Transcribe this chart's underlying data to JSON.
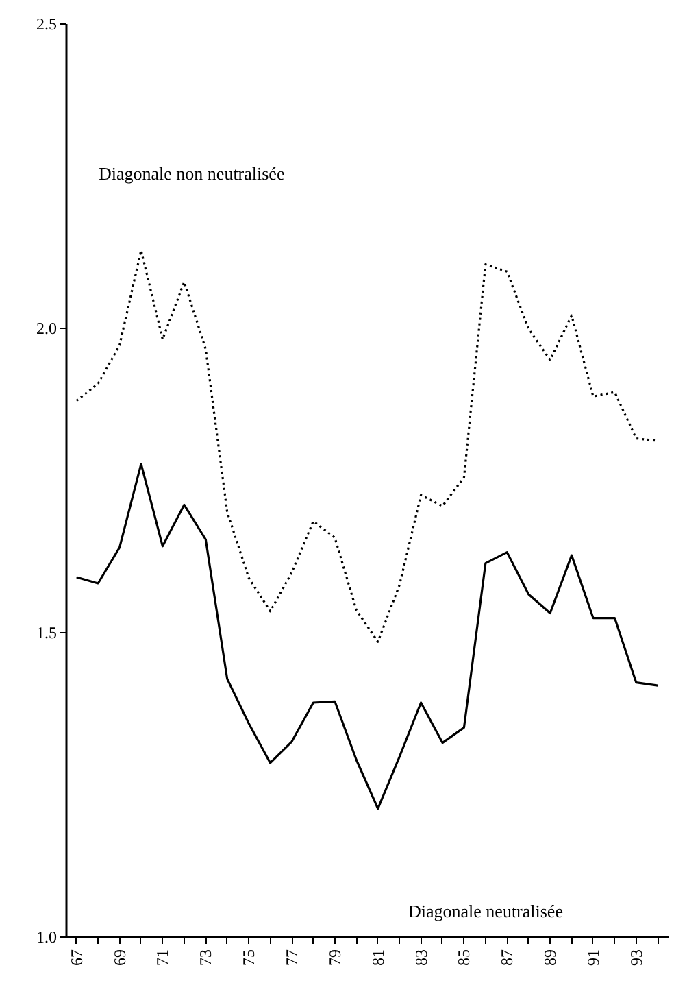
{
  "chart_data": {
    "type": "line",
    "categories": [
      "67",
      null,
      "69",
      null,
      "71",
      null,
      "73",
      null,
      "75",
      null,
      "77",
      null,
      "79",
      null,
      "81",
      null,
      "83",
      null,
      "85",
      null,
      "87",
      null,
      "89",
      null,
      "91",
      null,
      "93",
      null
    ],
    "series": [
      {
        "color": "#000000",
        "line_style": "dotted",
        "values": [
          1.88,
          1.908,
          1.971,
          2.127,
          1.981,
          2.075,
          1.965,
          1.697,
          1.589,
          1.534,
          1.598,
          1.682,
          1.655,
          1.536,
          1.484,
          1.577,
          1.725,
          1.707,
          1.754,
          2.104,
          2.092,
          1.998,
          1.947,
          2.02,
          1.887,
          1.894,
          1.818,
          1.814
        ]
      },
      {
        "color": "#000000",
        "line_style": "solid",
        "values": [
          1.59,
          1.58,
          1.639,
          1.776,
          1.641,
          1.709,
          1.652,
          1.423,
          1.35,
          1.285,
          1.32,
          1.384,
          1.386,
          1.29,
          1.21,
          1.295,
          1.384,
          1.318,
          1.343,
          1.613,
          1.631,
          1.562,
          1.531,
          1.626,
          1.523,
          1.523,
          1.417,
          1.412
        ]
      }
    ],
    "annotations": [
      "Diagonale non neutralisée",
      "Diagonale neutralisée"
    ],
    "ylim": [
      1,
      2.5
    ],
    "yticks": [
      {
        "value": 1,
        "label": "1.0"
      },
      {
        "value": 1.5,
        "label": "1.5"
      },
      {
        "value": 2,
        "label": "2.0"
      },
      {
        "value": 2.5,
        "label": "2.5"
      }
    ],
    "grid": false,
    "marker": "none"
  }
}
